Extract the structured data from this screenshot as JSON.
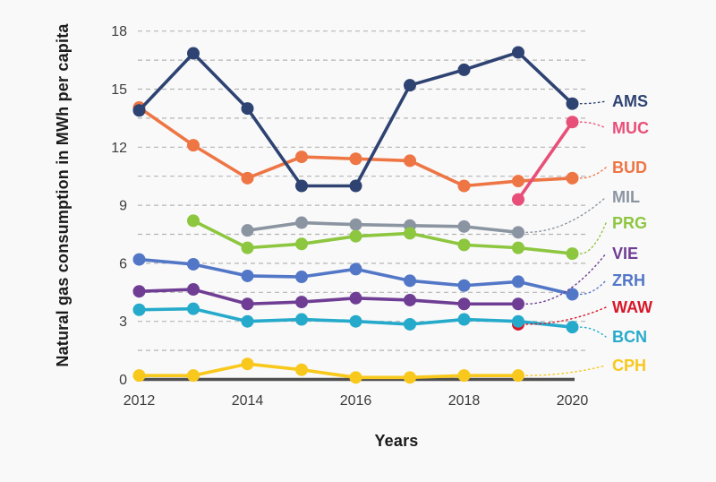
{
  "figure": {
    "background": "#f9f9f9",
    "grid_color": "#b5b5b5",
    "axis_line_color": "#4f4f4f",
    "tick_text_color": "#3c3c3c"
  },
  "chart_data": {
    "type": "line",
    "title": "",
    "xlabel": "Years",
    "ylabel": "Natural gas consumption in MWh per capita",
    "x": [
      2012,
      2013,
      2014,
      2015,
      2016,
      2017,
      2018,
      2019,
      2020
    ],
    "x_tick_labels": [
      "2012",
      "2014",
      "2016",
      "2018",
      "2020"
    ],
    "x_ticks": [
      2012,
      2014,
      2016,
      2018,
      2020
    ],
    "y_ticks": [
      0,
      3,
      6,
      9,
      12,
      15,
      18
    ],
    "ylim": [
      0,
      18
    ],
    "grid": {
      "horizontal": true,
      "style": "dashed",
      "minor_step": 1.5
    },
    "legend_position": "right-edge labels with dotted leader lines to last point",
    "series": [
      {
        "name": "AMS",
        "color": "#2e4372",
        "zorder": 8,
        "values": [
          13.9,
          16.85,
          14.0,
          10.0,
          10.0,
          15.2,
          16.0,
          16.9,
          14.25
        ]
      },
      {
        "name": "MUC",
        "color": "#e84f78",
        "zorder": 10,
        "values": [
          null,
          null,
          null,
          null,
          null,
          null,
          null,
          9.3,
          13.3
        ]
      },
      {
        "name": "BUD",
        "color": "#ee7544",
        "zorder": 7,
        "values": [
          14.05,
          12.1,
          10.4,
          11.5,
          11.4,
          11.3,
          10.0,
          10.25,
          10.4
        ]
      },
      {
        "name": "MIL",
        "color": "#8b95a1",
        "zorder": 1,
        "values": [
          null,
          null,
          7.7,
          8.1,
          8.0,
          7.95,
          7.9,
          7.6,
          null
        ]
      },
      {
        "name": "PRG",
        "color": "#8dc63f",
        "zorder": 2,
        "values": [
          null,
          8.2,
          6.8,
          7.0,
          7.4,
          7.55,
          6.95,
          6.8,
          6.5
        ]
      },
      {
        "name": "VIE",
        "color": "#6f3e94",
        "zorder": 3,
        "values": [
          4.55,
          4.65,
          3.9,
          4.0,
          4.2,
          4.1,
          3.9,
          3.9,
          null
        ]
      },
      {
        "name": "ZRH",
        "color": "#5377c7",
        "zorder": 4,
        "values": [
          6.2,
          5.95,
          5.35,
          5.3,
          5.7,
          5.1,
          4.85,
          5.05,
          4.4
        ]
      },
      {
        "name": "WAW",
        "color": "#d7182a",
        "zorder": 5,
        "values": [
          null,
          null,
          null,
          null,
          null,
          null,
          null,
          2.85,
          null
        ]
      },
      {
        "name": "BCN",
        "color": "#26aacb",
        "zorder": 6,
        "values": [
          3.6,
          3.65,
          3.0,
          3.1,
          3.0,
          2.85,
          3.1,
          3.0,
          2.7
        ]
      },
      {
        "name": "CPH",
        "color": "#f8c81c",
        "zorder": 9,
        "values": [
          0.2,
          0.2,
          0.8,
          0.5,
          0.1,
          0.1,
          0.2,
          0.2,
          null
        ]
      }
    ]
  }
}
